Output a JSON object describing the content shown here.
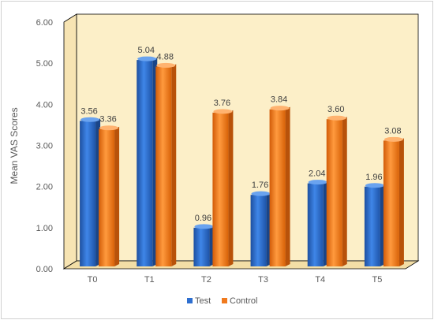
{
  "chart_data": {
    "type": "bar",
    "title": "",
    "xlabel": "",
    "ylabel": "Mean VAS Scores",
    "ylim": [
      0,
      6
    ],
    "y_ticks": [
      "0.00",
      "1.00",
      "2.00",
      "3.00",
      "4.00",
      "5.00",
      "6.00"
    ],
    "categories": [
      "T0",
      "T1",
      "T2",
      "T3",
      "T4",
      "T5"
    ],
    "series": [
      {
        "name": "Test",
        "color": "#2E6FD0",
        "values": [
          3.56,
          5.04,
          0.96,
          1.76,
          2.04,
          1.96
        ],
        "labels": [
          "3.56",
          "5.04",
          "0.96",
          "1.76",
          "2.04",
          "1.96"
        ]
      },
      {
        "name": "Control",
        "color": "#F07A1E",
        "values": [
          3.36,
          4.88,
          3.76,
          3.84,
          3.6,
          3.08
        ],
        "labels": [
          "3.36",
          "4.88",
          "3.76",
          "3.84",
          "3.60",
          "3.08"
        ]
      }
    ],
    "grid": false,
    "legend_position": "bottom",
    "plot_background": "#FCEFC8"
  }
}
